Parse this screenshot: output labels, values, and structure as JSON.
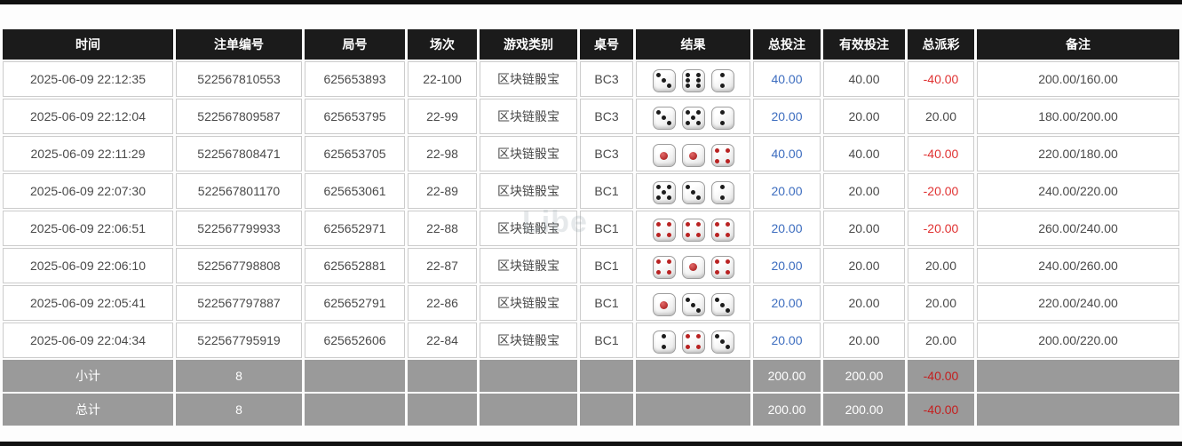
{
  "columns": [
    {
      "key": "time",
      "label": "时间"
    },
    {
      "key": "bet_id",
      "label": "注单编号"
    },
    {
      "key": "round_id",
      "label": "局号"
    },
    {
      "key": "session",
      "label": "场次"
    },
    {
      "key": "game_type",
      "label": "游戏类别"
    },
    {
      "key": "table_no",
      "label": "桌号"
    },
    {
      "key": "result",
      "label": "结果"
    },
    {
      "key": "total_bet",
      "label": "总投注"
    },
    {
      "key": "valid_bet",
      "label": "有效投注"
    },
    {
      "key": "payout",
      "label": "总派彩"
    },
    {
      "key": "remark",
      "label": "备注"
    }
  ],
  "rows": [
    {
      "time": "2025-06-09 22:12:35",
      "bet_id": "522567810553",
      "round_id": "625653893",
      "session": "22-100",
      "game_type": "区块链骰宝",
      "table_no": "BC3",
      "dice": [
        3,
        6,
        2
      ],
      "total_bet": "40.00",
      "valid_bet": "40.00",
      "payout": "-40.00",
      "remark": "200.00/160.00"
    },
    {
      "time": "2025-06-09 22:12:04",
      "bet_id": "522567809587",
      "round_id": "625653795",
      "session": "22-99",
      "game_type": "区块链骰宝",
      "table_no": "BC3",
      "dice": [
        3,
        5,
        2
      ],
      "total_bet": "20.00",
      "valid_bet": "20.00",
      "payout": "20.00",
      "remark": "180.00/200.00"
    },
    {
      "time": "2025-06-09 22:11:29",
      "bet_id": "522567808471",
      "round_id": "625653705",
      "session": "22-98",
      "game_type": "区块链骰宝",
      "table_no": "BC3",
      "dice": [
        1,
        1,
        4
      ],
      "total_bet": "40.00",
      "valid_bet": "40.00",
      "payout": "-40.00",
      "remark": "220.00/180.00"
    },
    {
      "time": "2025-06-09 22:07:30",
      "bet_id": "522567801170",
      "round_id": "625653061",
      "session": "22-89",
      "game_type": "区块链骰宝",
      "table_no": "BC1",
      "dice": [
        5,
        3,
        2
      ],
      "total_bet": "20.00",
      "valid_bet": "20.00",
      "payout": "-20.00",
      "remark": "240.00/220.00"
    },
    {
      "time": "2025-06-09 22:06:51",
      "bet_id": "522567799933",
      "round_id": "625652971",
      "session": "22-88",
      "game_type": "区块链骰宝",
      "table_no": "BC1",
      "dice": [
        4,
        4,
        4
      ],
      "total_bet": "20.00",
      "valid_bet": "20.00",
      "payout": "-20.00",
      "remark": "260.00/240.00"
    },
    {
      "time": "2025-06-09 22:06:10",
      "bet_id": "522567798808",
      "round_id": "625652881",
      "session": "22-87",
      "game_type": "区块链骰宝",
      "table_no": "BC1",
      "dice": [
        4,
        1,
        4
      ],
      "total_bet": "20.00",
      "valid_bet": "20.00",
      "payout": "20.00",
      "remark": "240.00/260.00"
    },
    {
      "time": "2025-06-09 22:05:41",
      "bet_id": "522567797887",
      "round_id": "625652791",
      "session": "22-86",
      "game_type": "区块链骰宝",
      "table_no": "BC1",
      "dice": [
        1,
        3,
        3
      ],
      "total_bet": "20.00",
      "valid_bet": "20.00",
      "payout": "20.00",
      "remark": "220.00/240.00"
    },
    {
      "time": "2025-06-09 22:04:34",
      "bet_id": "522567795919",
      "round_id": "625652606",
      "session": "22-84",
      "game_type": "区块链骰宝",
      "table_no": "BC1",
      "dice": [
        2,
        4,
        3
      ],
      "total_bet": "20.00",
      "valid_bet": "20.00",
      "payout": "20.00",
      "remark": "200.00/220.00"
    }
  ],
  "footer": [
    {
      "label": "小计",
      "count": "8",
      "total_bet": "200.00",
      "valid_bet": "200.00",
      "payout": "-40.00"
    },
    {
      "label": "总计",
      "count": "8",
      "total_bet": "200.00",
      "valid_bet": "200.00",
      "payout": "-40.00"
    }
  ],
  "watermark": "Libe",
  "colors": {
    "header_bg": "#1b1b1b",
    "footer_bg": "#9a9a9a",
    "link_blue": "#3d6dbf",
    "negative_red": "#e03333",
    "border": "#cccccc",
    "dice_red_pip": "#b92222",
    "dice_black_pip": "#1c1c1c"
  }
}
